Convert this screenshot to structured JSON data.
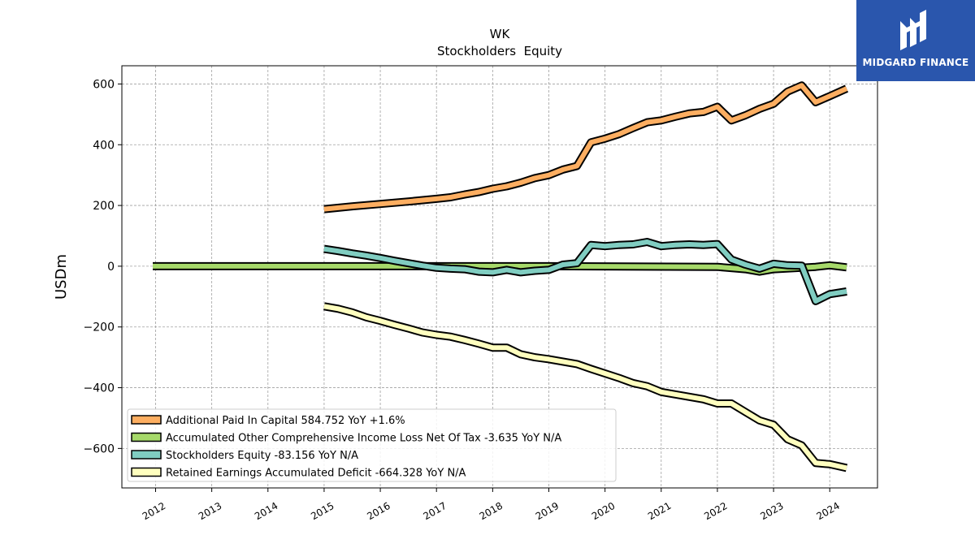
{
  "logo": {
    "brand_text": "MIDGARD FINANCE",
    "background": "#2a56ad"
  },
  "chart_data": {
    "type": "line",
    "title": "WK",
    "subtitle": "Stockholders  Equity",
    "ylabel": "USDm",
    "xlabel": "",
    "ylim": [
      -730,
      660
    ],
    "xlim": [
      2011.4,
      2024.85
    ],
    "yticks": [
      600,
      400,
      200,
      0,
      -200,
      -400,
      -600
    ],
    "ytick_labels": [
      "600",
      "400",
      "200",
      "0",
      "−200",
      "−400",
      "−600"
    ],
    "xticks": [
      2012,
      2013,
      2014,
      2015,
      2016,
      2017,
      2018,
      2019,
      2020,
      2021,
      2022,
      2023,
      2024
    ],
    "xtick_labels": [
      "2012",
      "2013",
      "2014",
      "2015",
      "2016",
      "2017",
      "2018",
      "2019",
      "2020",
      "2021",
      "2022",
      "2023",
      "2024"
    ],
    "grid": true,
    "legend_position": "lower-left",
    "series": [
      {
        "name": "Additional Paid In Capital",
        "legend_label": "Additional Paid In Capital  584.752 YoY +1.6%",
        "color": "#fdae61",
        "points": [
          [
            2015.0,
            188
          ],
          [
            2015.5,
            197
          ],
          [
            2016.0,
            205
          ],
          [
            2016.5,
            213
          ],
          [
            2017.0,
            222
          ],
          [
            2017.25,
            227
          ],
          [
            2017.5,
            236
          ],
          [
            2017.75,
            244
          ],
          [
            2018.0,
            255
          ],
          [
            2018.25,
            263
          ],
          [
            2018.5,
            275
          ],
          [
            2018.75,
            290
          ],
          [
            2019.0,
            300
          ],
          [
            2019.25,
            318
          ],
          [
            2019.5,
            330
          ],
          [
            2019.75,
            408
          ],
          [
            2020.0,
            420
          ],
          [
            2020.25,
            435
          ],
          [
            2020.5,
            455
          ],
          [
            2020.75,
            474
          ],
          [
            2021.0,
            480
          ],
          [
            2021.25,
            492
          ],
          [
            2021.5,
            503
          ],
          [
            2021.75,
            508
          ],
          [
            2022.0,
            525
          ],
          [
            2022.25,
            480
          ],
          [
            2022.5,
            497
          ],
          [
            2022.75,
            518
          ],
          [
            2023.0,
            535
          ],
          [
            2023.25,
            575
          ],
          [
            2023.5,
            595
          ],
          [
            2023.75,
            540
          ],
          [
            2024.0,
            560
          ],
          [
            2024.3,
            585
          ]
        ]
      },
      {
        "name": "Accumulated Other Comprehensive Income Loss Net Of Tax",
        "legend_label": "Accumulated Other Comprehensive Income Loss Net Of Tax  -3.635 YoY N/A",
        "color": "#a6d96a",
        "points": [
          [
            2011.95,
            0
          ],
          [
            2015.0,
            0
          ],
          [
            2019.0,
            0
          ],
          [
            2022.0,
            -2
          ],
          [
            2022.5,
            -10
          ],
          [
            2022.75,
            -18
          ],
          [
            2023.0,
            -10
          ],
          [
            2023.5,
            -5
          ],
          [
            2023.75,
            -2
          ],
          [
            2024.0,
            3
          ],
          [
            2024.3,
            -3.6
          ]
        ]
      },
      {
        "name": "Stockholders Equity",
        "legend_label": "Stockholders Equity  -83.156 YoY N/A",
        "color": "#80cdc1",
        "points": [
          [
            2015.0,
            57
          ],
          [
            2015.25,
            50
          ],
          [
            2015.5,
            42
          ],
          [
            2015.75,
            35
          ],
          [
            2016.0,
            27
          ],
          [
            2016.25,
            18
          ],
          [
            2016.5,
            10
          ],
          [
            2016.75,
            2
          ],
          [
            2017.0,
            -5
          ],
          [
            2017.25,
            -8
          ],
          [
            2017.5,
            -10
          ],
          [
            2017.75,
            -18
          ],
          [
            2018.0,
            -20
          ],
          [
            2018.25,
            -12
          ],
          [
            2018.5,
            -20
          ],
          [
            2018.75,
            -15
          ],
          [
            2019.0,
            -12
          ],
          [
            2019.25,
            5
          ],
          [
            2019.5,
            10
          ],
          [
            2019.75,
            70
          ],
          [
            2020.0,
            66
          ],
          [
            2020.25,
            70
          ],
          [
            2020.5,
            72
          ],
          [
            2020.75,
            80
          ],
          [
            2021.0,
            66
          ],
          [
            2021.25,
            70
          ],
          [
            2021.5,
            72
          ],
          [
            2021.75,
            70
          ],
          [
            2022.0,
            73
          ],
          [
            2022.25,
            22
          ],
          [
            2022.5,
            5
          ],
          [
            2022.75,
            -8
          ],
          [
            2023.0,
            8
          ],
          [
            2023.25,
            3
          ],
          [
            2023.5,
            2
          ],
          [
            2023.75,
            -115
          ],
          [
            2024.0,
            -92
          ],
          [
            2024.3,
            -83.2
          ]
        ]
      },
      {
        "name": "Retained Earnings Accumulated Deficit",
        "legend_label": "Retained Earnings Accumulated Deficit  -664.328 YoY N/A",
        "color": "#ffffbf",
        "points": [
          [
            2015.0,
            -132
          ],
          [
            2015.25,
            -140
          ],
          [
            2015.5,
            -152
          ],
          [
            2015.75,
            -168
          ],
          [
            2016.0,
            -180
          ],
          [
            2016.25,
            -193
          ],
          [
            2016.5,
            -205
          ],
          [
            2016.75,
            -218
          ],
          [
            2017.0,
            -226
          ],
          [
            2017.25,
            -232
          ],
          [
            2017.5,
            -243
          ],
          [
            2017.75,
            -255
          ],
          [
            2018.0,
            -268
          ],
          [
            2018.25,
            -268
          ],
          [
            2018.5,
            -290
          ],
          [
            2018.75,
            -300
          ],
          [
            2019.0,
            -306
          ],
          [
            2019.25,
            -314
          ],
          [
            2019.5,
            -322
          ],
          [
            2019.75,
            -338
          ],
          [
            2020.0,
            -353
          ],
          [
            2020.25,
            -368
          ],
          [
            2020.5,
            -385
          ],
          [
            2020.75,
            -395
          ],
          [
            2021.0,
            -414
          ],
          [
            2021.25,
            -422
          ],
          [
            2021.5,
            -430
          ],
          [
            2021.75,
            -438
          ],
          [
            2022.0,
            -452
          ],
          [
            2022.25,
            -452
          ],
          [
            2022.5,
            -480
          ],
          [
            2022.75,
            -508
          ],
          [
            2023.0,
            -522
          ],
          [
            2023.25,
            -570
          ],
          [
            2023.5,
            -590
          ],
          [
            2023.75,
            -648
          ],
          [
            2024.0,
            -652
          ],
          [
            2024.3,
            -664.3
          ]
        ]
      }
    ]
  }
}
